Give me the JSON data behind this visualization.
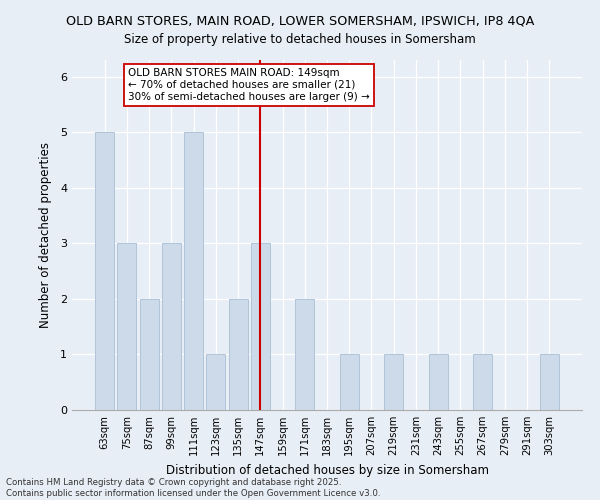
{
  "title_line1": "OLD BARN STORES, MAIN ROAD, LOWER SOMERSHAM, IPSWICH, IP8 4QA",
  "title_line2": "Size of property relative to detached houses in Somersham",
  "xlabel": "Distribution of detached houses by size in Somersham",
  "ylabel": "Number of detached properties",
  "categories": [
    "63sqm",
    "75sqm",
    "87sqm",
    "99sqm",
    "111sqm",
    "123sqm",
    "135sqm",
    "147sqm",
    "159sqm",
    "171sqm",
    "183sqm",
    "195sqm",
    "207sqm",
    "219sqm",
    "231sqm",
    "243sqm",
    "255sqm",
    "267sqm",
    "279sqm",
    "291sqm",
    "303sqm"
  ],
  "values": [
    5,
    3,
    2,
    3,
    5,
    1,
    2,
    3,
    0,
    2,
    0,
    1,
    0,
    1,
    0,
    1,
    0,
    1,
    0,
    0,
    1
  ],
  "bar_color": "#ccdaea",
  "bar_edge_color": "#b0c4d8",
  "reference_line_index": 7,
  "reference_line_color": "#cc0000",
  "annotation_text": "OLD BARN STORES MAIN ROAD: 149sqm\n← 70% of detached houses are smaller (21)\n30% of semi-detached houses are larger (9) →",
  "annotation_box_facecolor": "#ffffff",
  "annotation_box_edgecolor": "#cc0000",
  "ylim": [
    0,
    6.3
  ],
  "yticks": [
    0,
    1,
    2,
    3,
    4,
    5,
    6
  ],
  "background_color": "#e8eef5",
  "plot_bg_color": "#e8eef5",
  "grid_color": "#ffffff",
  "footer_line1": "Contains HM Land Registry data © Crown copyright and database right 2025.",
  "footer_line2": "Contains public sector information licensed under the Open Government Licence v3.0."
}
